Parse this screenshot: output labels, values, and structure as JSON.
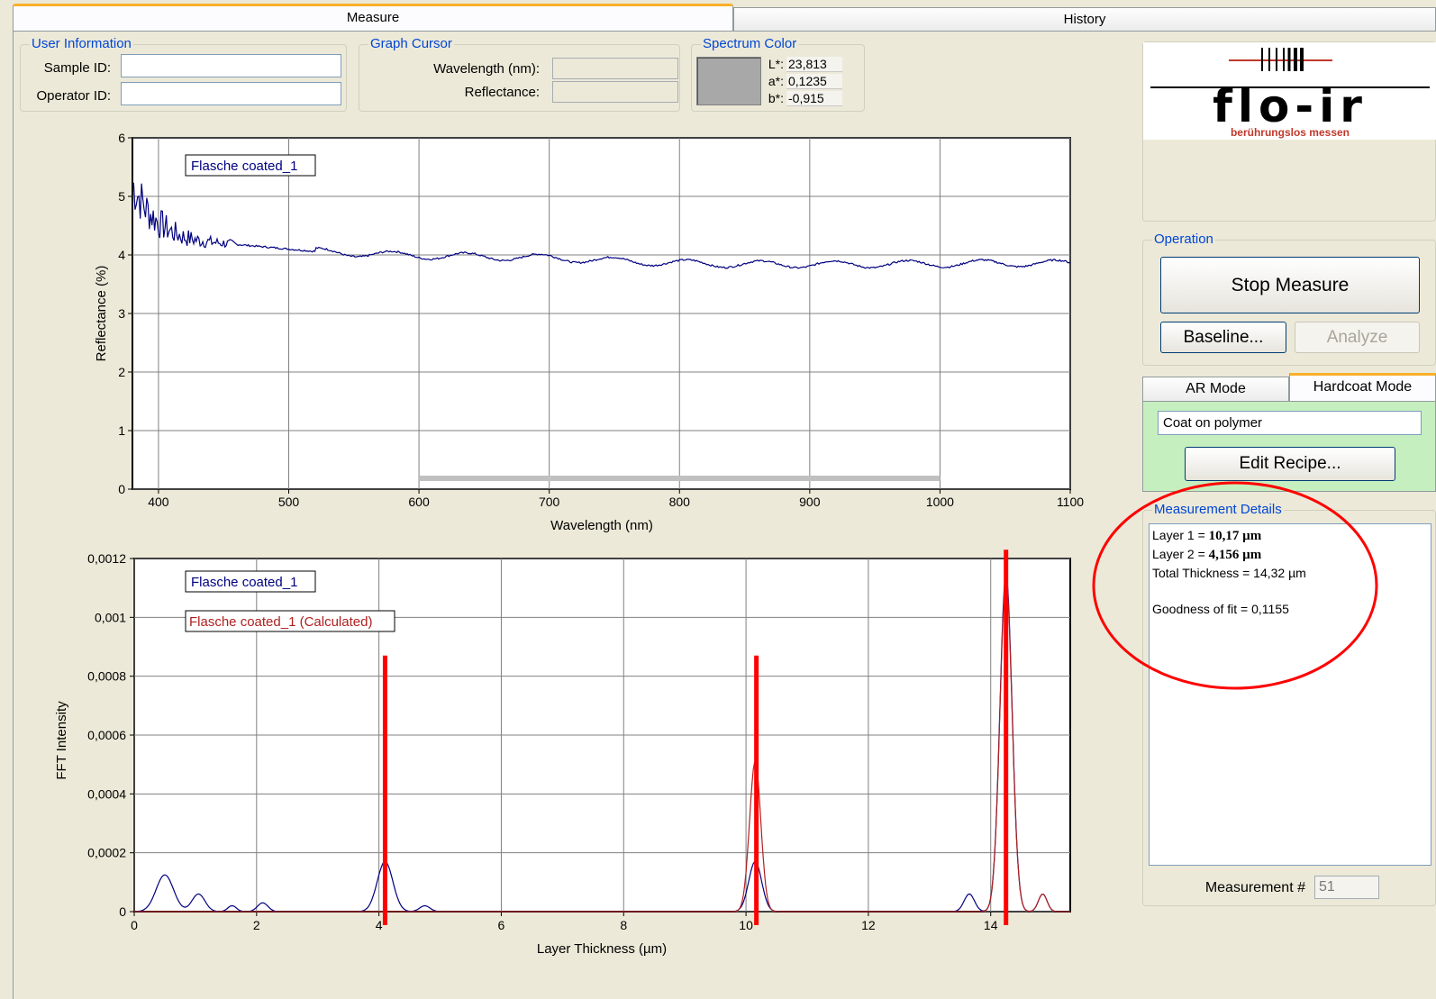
{
  "tabs": {
    "measure": "Measure",
    "history": "History"
  },
  "user_info": {
    "title": "User Information",
    "sample_id_label": "Sample ID:",
    "sample_id_value": "",
    "operator_id_label": "Operator ID:",
    "operator_id_value": ""
  },
  "graph_cursor": {
    "title": "Graph Cursor",
    "wavelength_label": "Wavelength (nm):",
    "wavelength_value": "",
    "reflectance_label": "Reflectance:",
    "reflectance_value": ""
  },
  "spectrum_color": {
    "title": "Spectrum Color",
    "swatch_color": "#a8a8a8",
    "l_label": "L*:",
    "l_value": "23,813",
    "a_label": "a*:",
    "a_value": "0,1235",
    "b_label": "b*:",
    "b_value": "-0,915"
  },
  "logo": {
    "text": "flo-ir",
    "tagline": "berührungslos messen",
    "brand_color": "#c0392b"
  },
  "operation": {
    "title": "Operation",
    "stop_measure": "Stop Measure",
    "baseline": "Baseline...",
    "analyze": "Analyze"
  },
  "mode_tabs": {
    "ar_mode": "AR Mode",
    "hardcoat_mode": "Hardcoat Mode"
  },
  "recipe": {
    "name": "Coat on polymer",
    "edit_button": "Edit Recipe..."
  },
  "measurement_details": {
    "title": "Measurement Details",
    "layer1_label": "Layer 1 = ",
    "layer1_value": "10,17 µm",
    "layer2_label": "Layer 2 = ",
    "layer2_value": "4,156 µm",
    "total": "Total Thickness = 14,32 µm",
    "goodness": "Goodness of fit = 0,1155"
  },
  "measurement_number": {
    "label": "Measurement #",
    "value": "51"
  },
  "chart_data": [
    {
      "type": "line",
      "xlabel": "Wavelength (nm)",
      "ylabel": "Reflectance (%)",
      "xlim": [
        380,
        1100
      ],
      "ylim": [
        0,
        6
      ],
      "x_ticks": [
        "400",
        "500",
        "600",
        "700",
        "800",
        "900",
        "1000",
        "1100"
      ],
      "y_ticks": [
        "0",
        "1",
        "2",
        "3",
        "4",
        "5",
        "6"
      ],
      "grid": true,
      "legend": "top-left",
      "series": [
        {
          "name": "Flasche coated_1",
          "color": "#000080",
          "x": [
            380,
            390,
            400,
            410,
            420,
            430,
            440,
            450,
            460,
            480,
            500,
            520,
            540,
            560,
            580,
            600,
            650,
            700,
            750,
            800,
            850,
            900,
            950,
            1000,
            1050,
            1100
          ],
          "y": [
            5.2,
            4.8,
            4.55,
            4.4,
            4.3,
            4.25,
            4.22,
            4.2,
            4.18,
            4.14,
            4.1,
            4.06,
            4.04,
            4.02,
            4.0,
            3.99,
            3.97,
            3.95,
            3.9,
            3.86,
            3.84,
            3.84,
            3.84,
            3.85,
            3.86,
            3.85
          ]
        }
      ],
      "range_bar": {
        "x": [
          600,
          1000
        ],
        "color": "#c0c0c0"
      }
    },
    {
      "type": "line",
      "xlabel": "Layer Thickness (µm)",
      "ylabel": "FFT Intensity",
      "xlim": [
        0,
        15.3
      ],
      "ylim": [
        0,
        0.0012
      ],
      "x_ticks": [
        "0",
        "2",
        "4",
        "6",
        "8",
        "10",
        "12",
        "14"
      ],
      "y_ticks": [
        "0",
        "0,0002",
        "0,0004",
        "0,0006",
        "0,0008",
        "0,001",
        "0,0012"
      ],
      "grid": true,
      "legend": "top-left",
      "series": [
        {
          "name": "Flasche coated_1",
          "color": "#000080",
          "peaks": [
            [
              0.5,
              0.000125,
              0.2
            ],
            [
              1.05,
              6e-05,
              0.15
            ],
            [
              1.6,
              2e-05,
              0.1
            ],
            [
              2.1,
              3e-05,
              0.12
            ],
            [
              4.1,
              0.00017,
              0.18
            ],
            [
              4.75,
              2e-05,
              0.12
            ],
            [
              10.15,
              0.00017,
              0.15
            ],
            [
              13.65,
              6e-05,
              0.12
            ],
            [
              14.25,
              0.00115,
              0.14
            ],
            [
              14.85,
              6e-05,
              0.1
            ]
          ]
        },
        {
          "name": "Flasche coated_1 (Calculated)",
          "color": "#b02020",
          "peaks": [
            [
              10.15,
              0.00051,
              0.13
            ],
            [
              14.25,
              0.00113,
              0.14
            ],
            [
              14.85,
              6e-05,
              0.1
            ]
          ]
        }
      ],
      "markers": {
        "x": [
          4.1,
          10.17,
          14.25
        ],
        "top": [
          0.00087,
          0.00087,
          0.00123
        ],
        "color": "#ff0000"
      }
    }
  ]
}
